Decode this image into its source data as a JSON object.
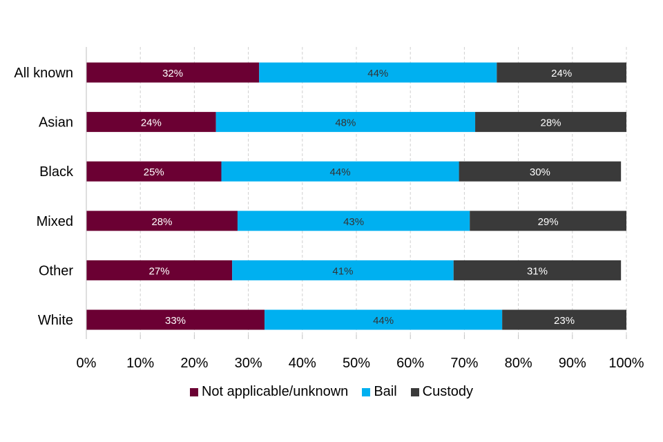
{
  "chart_data": {
    "type": "bar",
    "orientation": "horizontal",
    "stacked": true,
    "categories": [
      "All known",
      "Asian",
      "Black",
      "Mixed",
      "Other",
      "White"
    ],
    "series": [
      {
        "name": "Not applicable/unknown",
        "color": "#6b0033",
        "label_color": "#ffffff",
        "values": [
          32,
          24,
          25,
          28,
          27,
          33
        ],
        "data_labels": [
          "32%",
          "24%",
          "25%",
          "28%",
          "27%",
          "33%"
        ]
      },
      {
        "name": "Bail",
        "color": "#00b0f0",
        "label_color": "#333333",
        "values": [
          44,
          48,
          44,
          43,
          41,
          44
        ],
        "data_labels": [
          "44%",
          "48%",
          "44%",
          "43%",
          "41%",
          "44%"
        ]
      },
      {
        "name": "Custody",
        "color": "#3a3a3a",
        "label_color": "#ffffff",
        "values": [
          24,
          28,
          30,
          29,
          31,
          23
        ],
        "data_labels": [
          "24%",
          "28%",
          "30%",
          "29%",
          "31%",
          "23%"
        ]
      }
    ],
    "xlim": [
      0,
      100
    ],
    "x_ticks": [
      "0%",
      "10%",
      "20%",
      "30%",
      "40%",
      "50%",
      "60%",
      "70%",
      "80%",
      "90%",
      "100%"
    ],
    "grid": "vertical dashed",
    "legend": "bottom"
  }
}
